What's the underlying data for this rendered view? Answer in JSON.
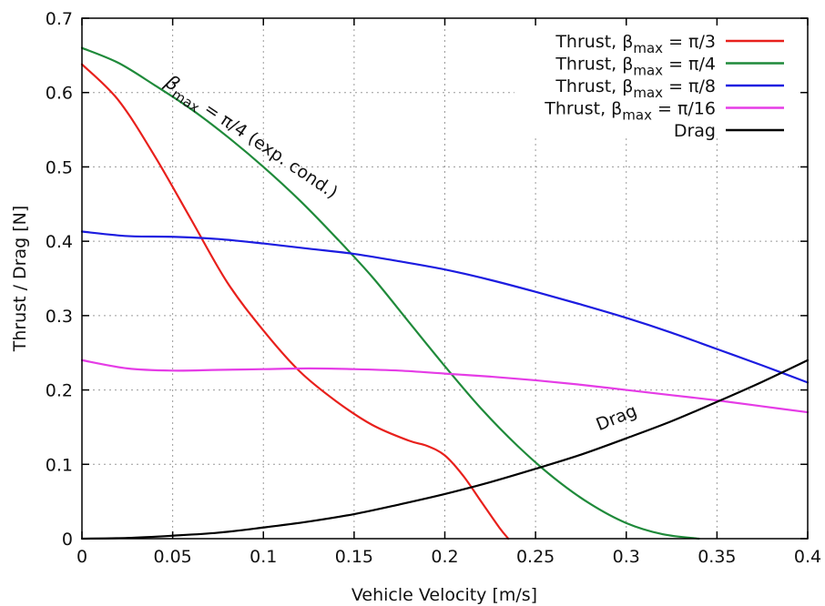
{
  "chart_data": {
    "type": "line",
    "xlabel": "Vehicle Velocity [m/s]",
    "ylabel": "Thrust / Drag [N]",
    "xlim": [
      0,
      0.4
    ],
    "ylim": [
      0,
      0.7
    ],
    "xticks": [
      "0",
      "0.05",
      "0.1",
      "0.15",
      "0.2",
      "0.25",
      "0.3",
      "0.35",
      "0.4"
    ],
    "yticks": [
      "0",
      "0.1",
      "0.2",
      "0.3",
      "0.4",
      "0.5",
      "0.6",
      "0.7"
    ],
    "grid": true,
    "legend_position": "top-right",
    "series": [
      {
        "name": "Thrust, βmax = π/3",
        "legend": {
          "pre": "Thrust, β",
          "sub": "max",
          "post": " = π/3"
        },
        "color": "#e8201c",
        "x": [
          0,
          0.02,
          0.04,
          0.06,
          0.08,
          0.1,
          0.12,
          0.14,
          0.16,
          0.18,
          0.19,
          0.2,
          0.21,
          0.22,
          0.23,
          0.235
        ],
        "y": [
          0.638,
          0.59,
          0.515,
          0.43,
          0.345,
          0.28,
          0.225,
          0.185,
          0.153,
          0.132,
          0.125,
          0.112,
          0.085,
          0.05,
          0.015,
          0.0
        ]
      },
      {
        "name": "Thrust, βmax = π/4",
        "legend": {
          "pre": "Thrust, β",
          "sub": "max",
          "post": " = π/4"
        },
        "color": "#1f8a3a",
        "x": [
          0,
          0.02,
          0.04,
          0.06,
          0.08,
          0.1,
          0.12,
          0.14,
          0.16,
          0.18,
          0.2,
          0.22,
          0.24,
          0.26,
          0.28,
          0.3,
          0.32,
          0.34
        ],
        "y": [
          0.66,
          0.64,
          0.61,
          0.578,
          0.541,
          0.5,
          0.455,
          0.405,
          0.352,
          0.292,
          0.232,
          0.175,
          0.125,
          0.082,
          0.047,
          0.021,
          0.006,
          0.0
        ]
      },
      {
        "name": "Thrust, βmax = π/8",
        "legend": {
          "pre": "Thrust, β",
          "sub": "max",
          "post": " = π/8"
        },
        "color": "#1c1ce0",
        "x": [
          0,
          0.025,
          0.05,
          0.075,
          0.1,
          0.125,
          0.15,
          0.175,
          0.2,
          0.225,
          0.25,
          0.275,
          0.3,
          0.325,
          0.35,
          0.375,
          0.4
        ],
        "y": [
          0.413,
          0.407,
          0.406,
          0.403,
          0.397,
          0.39,
          0.383,
          0.373,
          0.362,
          0.348,
          0.332,
          0.315,
          0.297,
          0.277,
          0.255,
          0.233,
          0.21
        ]
      },
      {
        "name": "Thrust, βmax = π/16",
        "legend": {
          "pre": "Thrust, β",
          "sub": "max",
          "post": " = π/16"
        },
        "color": "#e53ce6",
        "x": [
          0,
          0.025,
          0.05,
          0.075,
          0.1,
          0.125,
          0.15,
          0.175,
          0.2,
          0.225,
          0.25,
          0.275,
          0.3,
          0.325,
          0.35,
          0.375,
          0.4
        ],
        "y": [
          0.24,
          0.229,
          0.226,
          0.227,
          0.228,
          0.229,
          0.228,
          0.226,
          0.222,
          0.218,
          0.213,
          0.207,
          0.2,
          0.193,
          0.186,
          0.178,
          0.17
        ]
      },
      {
        "name": "Drag",
        "legend": {
          "pre": "Drag",
          "sub": "",
          "post": ""
        },
        "color": "#000000",
        "x": [
          0,
          0.025,
          0.05,
          0.075,
          0.1,
          0.125,
          0.15,
          0.175,
          0.2,
          0.225,
          0.25,
          0.275,
          0.3,
          0.325,
          0.35,
          0.375,
          0.4
        ],
        "y": [
          0.0,
          0.001,
          0.004,
          0.008,
          0.015,
          0.023,
          0.033,
          0.046,
          0.06,
          0.076,
          0.094,
          0.113,
          0.135,
          0.158,
          0.184,
          0.211,
          0.24
        ]
      }
    ],
    "annotations": [
      {
        "id": "beta-pi4",
        "parts": {
          "pre": "β",
          "sub": "max",
          "post": " = π/4  (exp. cond.)"
        },
        "at": [
          0.045,
          0.61
        ]
      },
      {
        "id": "drag",
        "text": "Drag",
        "at": [
          0.285,
          0.145
        ]
      }
    ]
  }
}
